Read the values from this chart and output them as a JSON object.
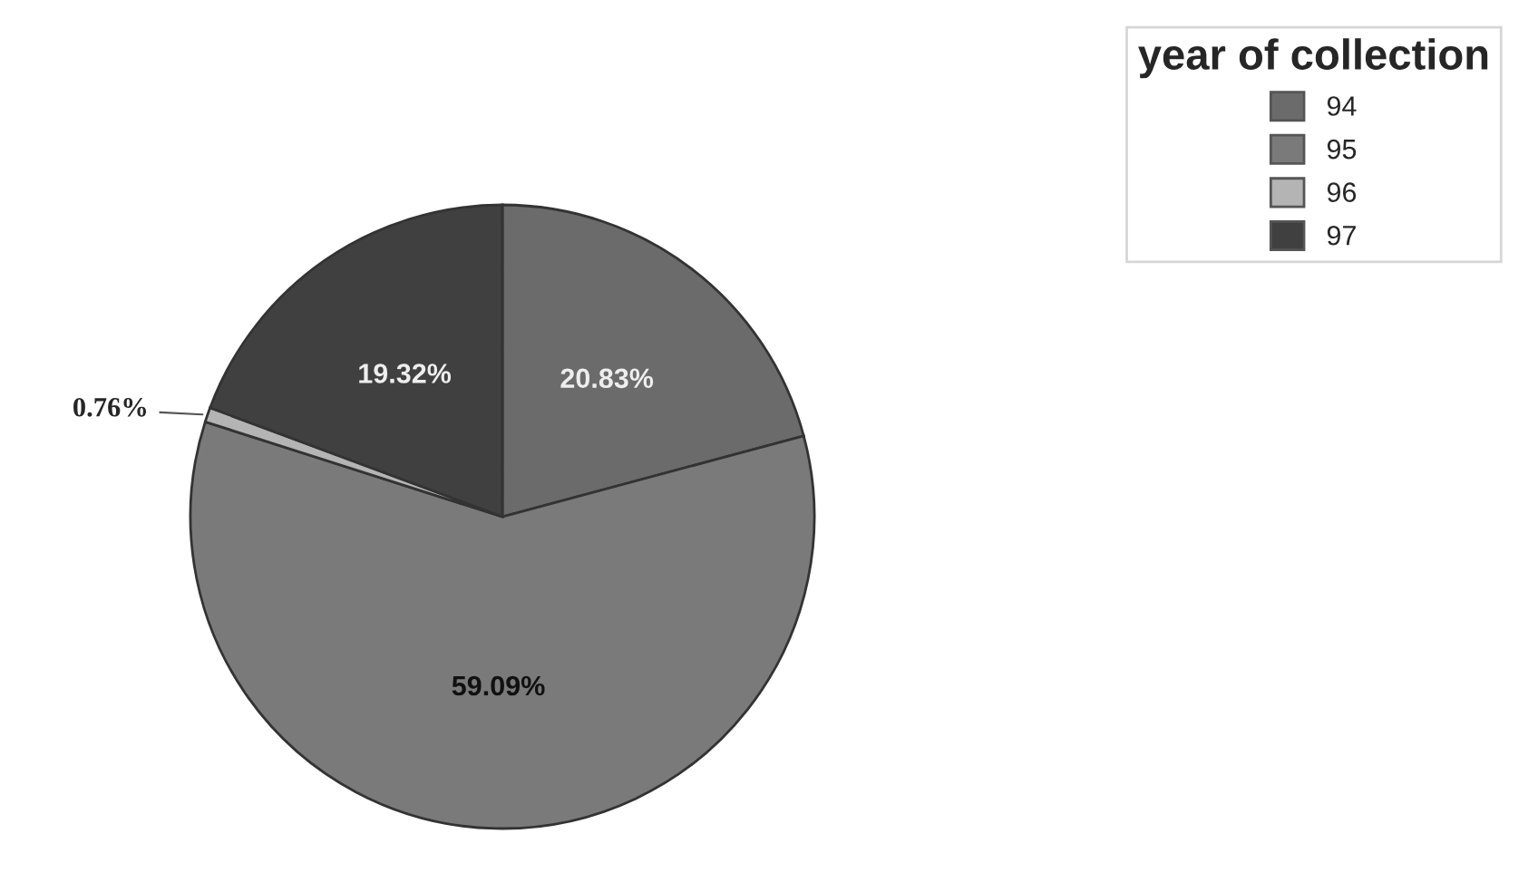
{
  "chart_data": {
    "type": "pie",
    "legend_title": "year of collection",
    "legend": "top right",
    "categories": [
      "94",
      "95",
      "96",
      "97"
    ],
    "values": [
      20.83,
      59.09,
      0.76,
      19.32
    ],
    "value_labels": [
      "20.83%",
      "59.09%",
      "0.76%",
      "19.32%"
    ],
    "colors": [
      "#6b6b6b",
      "#7a7a7a",
      "#b4b4b4",
      "#404040"
    ]
  }
}
